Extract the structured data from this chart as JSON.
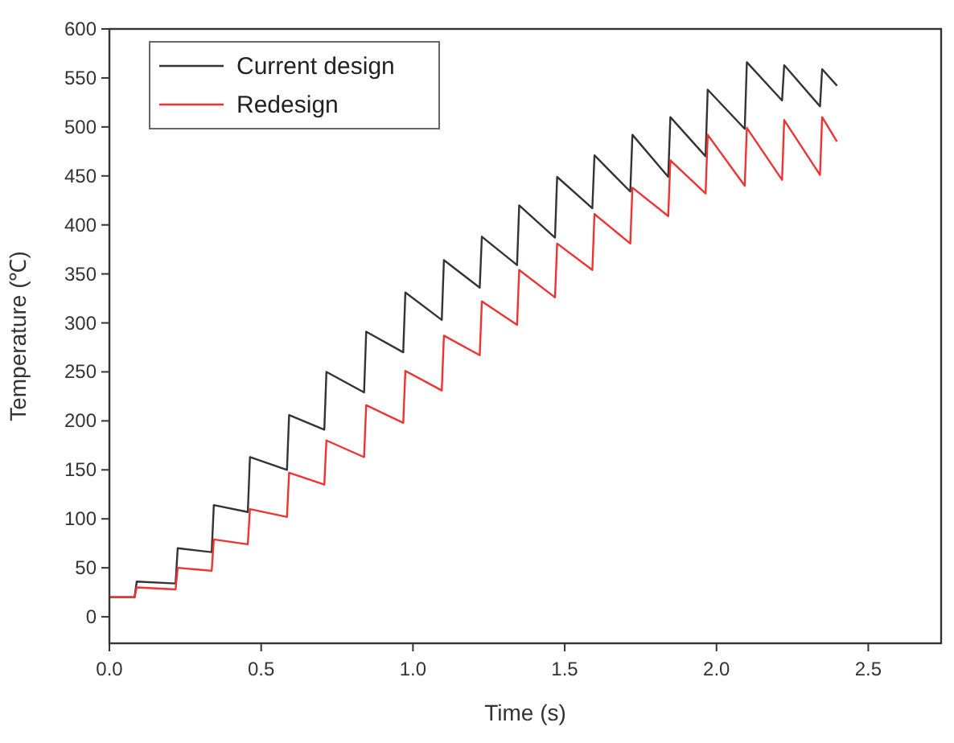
{
  "chart_data": {
    "type": "line",
    "xlabel": "Time (s)",
    "ylabel": "Temperature (℃)",
    "x": [
      0,
      0.083,
      0.09,
      0.218,
      0.225,
      0.337,
      0.344,
      0.456,
      0.463,
      0.585,
      0.592,
      0.708,
      0.715,
      0.839,
      0.846,
      0.968,
      0.975,
      1.095,
      1.102,
      1.22,
      1.227,
      1.343,
      1.35,
      1.468,
      1.475,
      1.591,
      1.598,
      1.716,
      1.723,
      1.841,
      1.848,
      1.964,
      1.971,
      2.093,
      2.1,
      2.216,
      2.223,
      2.341,
      2.348,
      2.397
    ],
    "series": [
      {
        "name": "Current design",
        "color": "#333333",
        "values": [
          20,
          20,
          36,
          34,
          70,
          66,
          114,
          107,
          163,
          150,
          206,
          191,
          250,
          229,
          291,
          270,
          331,
          303,
          364,
          336,
          388,
          359,
          420,
          387,
          449,
          417,
          471,
          434,
          492,
          449,
          510,
          470,
          538,
          498,
          566,
          527,
          563,
          521,
          559,
          542
        ]
      },
      {
        "name": "Redesign",
        "color": "#ee3333",
        "values": [
          20,
          20,
          30,
          28,
          50,
          47,
          79,
          74,
          110,
          102,
          147,
          135,
          180,
          163,
          216,
          198,
          251,
          231,
          287,
          267,
          322,
          298,
          354,
          326,
          381,
          354,
          411,
          381,
          438,
          409,
          466,
          432,
          492,
          440,
          499,
          446,
          507,
          451,
          510,
          485
        ]
      }
    ],
    "xlim": [
      0,
      2.74
    ],
    "xticks": [
      {
        "value": 0,
        "label": "0.0"
      },
      {
        "value": 0.5,
        "label": "0.5"
      },
      {
        "value": 1,
        "label": "1.0"
      },
      {
        "value": 1.5,
        "label": "1.5"
      },
      {
        "value": 2,
        "label": "2.0"
      },
      {
        "value": 2.5,
        "label": "2.5"
      }
    ],
    "ylim": [
      -27,
      600
    ],
    "yticks": [
      0,
      50,
      100,
      150,
      200,
      250,
      300,
      350,
      400,
      450,
      500,
      550,
      600
    ],
    "legend": "top left",
    "grid": false,
    "marker": "none",
    "line_style": "solid"
  }
}
